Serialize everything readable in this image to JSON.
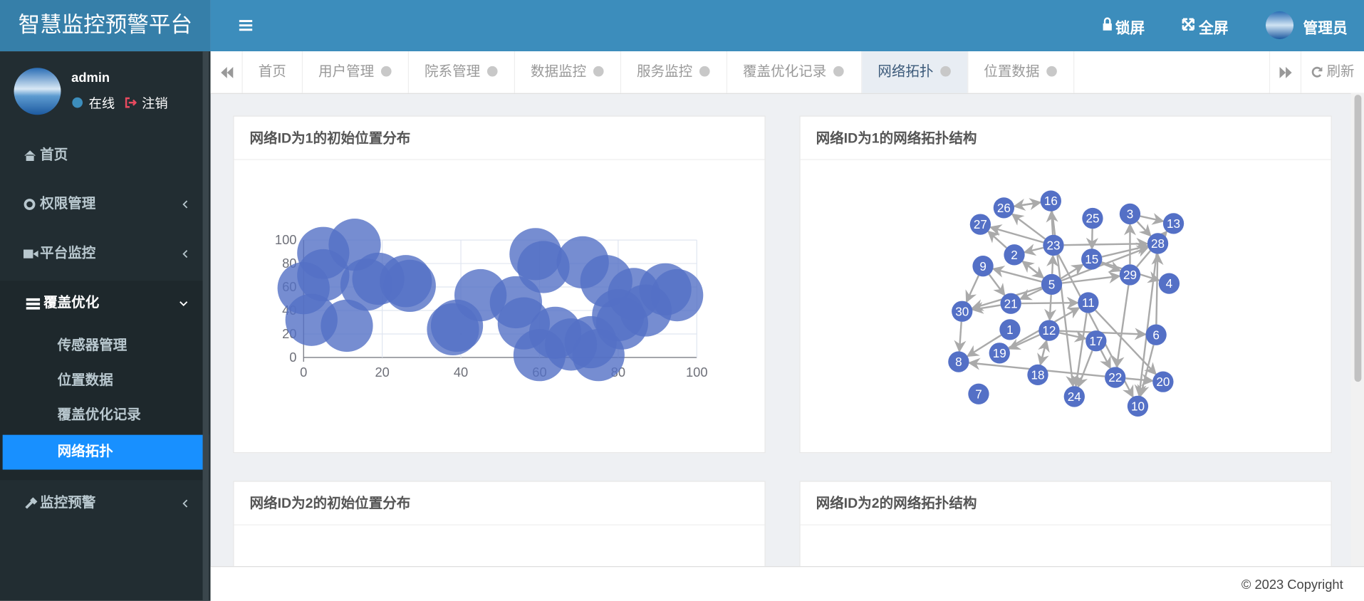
{
  "header": {
    "title": "智慧监控预警平台",
    "lock": "锁屏",
    "fullscreen": "全屏",
    "user": "管理员"
  },
  "sidebar": {
    "user": "admin",
    "status": "在线",
    "logout": "注销",
    "menu": [
      {
        "label": "首页"
      },
      {
        "label": "权限管理"
      },
      {
        "label": "平台监控"
      },
      {
        "label": "覆盖优化",
        "children": [
          "传感器管理",
          "位置数据",
          "覆盖优化记录",
          "网络拓扑"
        ]
      },
      {
        "label": "监控预警"
      }
    ]
  },
  "tabs": {
    "items": [
      "首页",
      "用户管理",
      "院系管理",
      "数据监控",
      "服务监控",
      "覆盖优化记录",
      "网络拓扑",
      "位置数据"
    ],
    "refresh": "刷新"
  },
  "panels": [
    {
      "title": "网络ID为1的初始位置分布",
      "chart_data": {
        "type": "scatter",
        "color": "#5470c6",
        "x": [
          5,
          13,
          0,
          5,
          2,
          11,
          16,
          19,
          26,
          27,
          38,
          39,
          45,
          54,
          59,
          61,
          56,
          60,
          64,
          68,
          73,
          75,
          71,
          77,
          81,
          87,
          84,
          92,
          95,
          80
        ],
        "y": [
          89,
          96,
          59,
          70,
          32,
          27,
          62,
          67,
          65,
          61,
          24,
          27,
          53,
          47,
          88,
          77,
          29,
          2,
          21,
          11,
          13,
          2,
          81,
          65,
          29,
          40,
          54,
          58,
          53,
          36
        ],
        "xlim": [
          0,
          100
        ],
        "ylim": [
          0,
          100
        ],
        "xticks": [
          0,
          20,
          40,
          60,
          80,
          100
        ],
        "yticks": [
          0,
          20,
          40,
          60,
          80,
          100
        ]
      }
    },
    {
      "title": "网络ID为1的网络拓扑结构",
      "graph": {
        "nodes": [
          26,
          16,
          27,
          25,
          3,
          13,
          2,
          23,
          28,
          9,
          15,
          29,
          4,
          5,
          21,
          11,
          30,
          1,
          12,
          6,
          17,
          19,
          8,
          18,
          22,
          20,
          7,
          24,
          10
        ]
      }
    },
    {
      "title": "网络ID为2的初始位置分布"
    },
    {
      "title": "网络ID为2的网络拓扑结构"
    }
  ],
  "footer": "© 2023 Copyright"
}
